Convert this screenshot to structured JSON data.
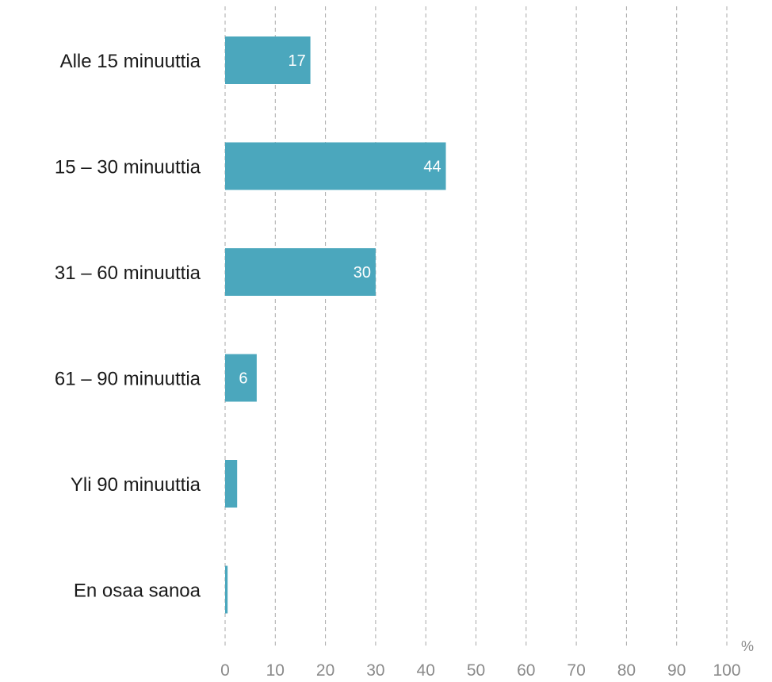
{
  "chart_data": {
    "type": "bar",
    "orientation": "horizontal",
    "categories": [
      "Alle 15 minuuttia",
      "15 – 30 minuuttia",
      "31 – 60 minuuttia",
      "61 – 90 minuuttia",
      "Yli 90 minuuttia",
      "En osaa sanoa"
    ],
    "values": [
      17,
      44,
      30,
      6.3,
      2.4,
      0.5
    ],
    "data_labels": [
      "17",
      "44",
      "30",
      "6",
      "",
      ""
    ],
    "xlim": [
      0,
      100
    ],
    "xticks": [
      0,
      10,
      20,
      30,
      40,
      50,
      60,
      70,
      80,
      90,
      100
    ],
    "x_unit": "%",
    "grid": "vertical dashed",
    "bar_color": "#4ba7bd"
  }
}
